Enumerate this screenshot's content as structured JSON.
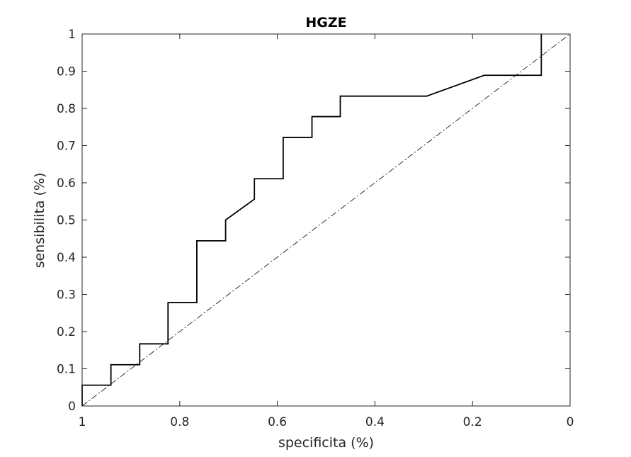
{
  "chart_data": {
    "type": "line",
    "title": "HGZE",
    "xlabel": "specificita (%)",
    "ylabel": "sensibilita (%)",
    "xlim": [
      1,
      0
    ],
    "ylim": [
      0,
      1
    ],
    "x_reversed": true,
    "xticks": [
      1,
      0.8,
      0.6,
      0.4,
      0.2,
      0
    ],
    "xtick_labels": [
      "1",
      "0.8",
      "0.6",
      "0.4",
      "0.2",
      "0"
    ],
    "yticks": [
      0,
      0.1,
      0.2,
      0.3,
      0.4,
      0.5,
      0.6,
      0.7,
      0.8,
      0.9,
      1
    ],
    "ytick_labels": [
      "0",
      "0.1",
      "0.2",
      "0.3",
      "0.4",
      "0.5",
      "0.6",
      "0.7",
      "0.8",
      "0.9",
      "1"
    ],
    "grid": false,
    "series": [
      {
        "style": "solid",
        "color": "#000000",
        "x": [
          1.0,
          1.0,
          0.941,
          0.941,
          0.882,
          0.882,
          0.824,
          0.824,
          0.765,
          0.765,
          0.706,
          0.706,
          0.647,
          0.647,
          0.588,
          0.588,
          0.529,
          0.529,
          0.471,
          0.471,
          0.294,
          0.176,
          0.059,
          0.059
        ],
        "y": [
          0.0,
          0.056,
          0.056,
          0.111,
          0.111,
          0.167,
          0.167,
          0.278,
          0.278,
          0.444,
          0.444,
          0.5,
          0.556,
          0.611,
          0.611,
          0.722,
          0.722,
          0.778,
          0.778,
          0.833,
          0.833,
          0.889,
          0.889,
          1.0
        ]
      },
      {
        "style": "dash-dot",
        "color": "#000000",
        "x": [
          1,
          0
        ],
        "y": [
          0,
          1
        ]
      }
    ]
  }
}
